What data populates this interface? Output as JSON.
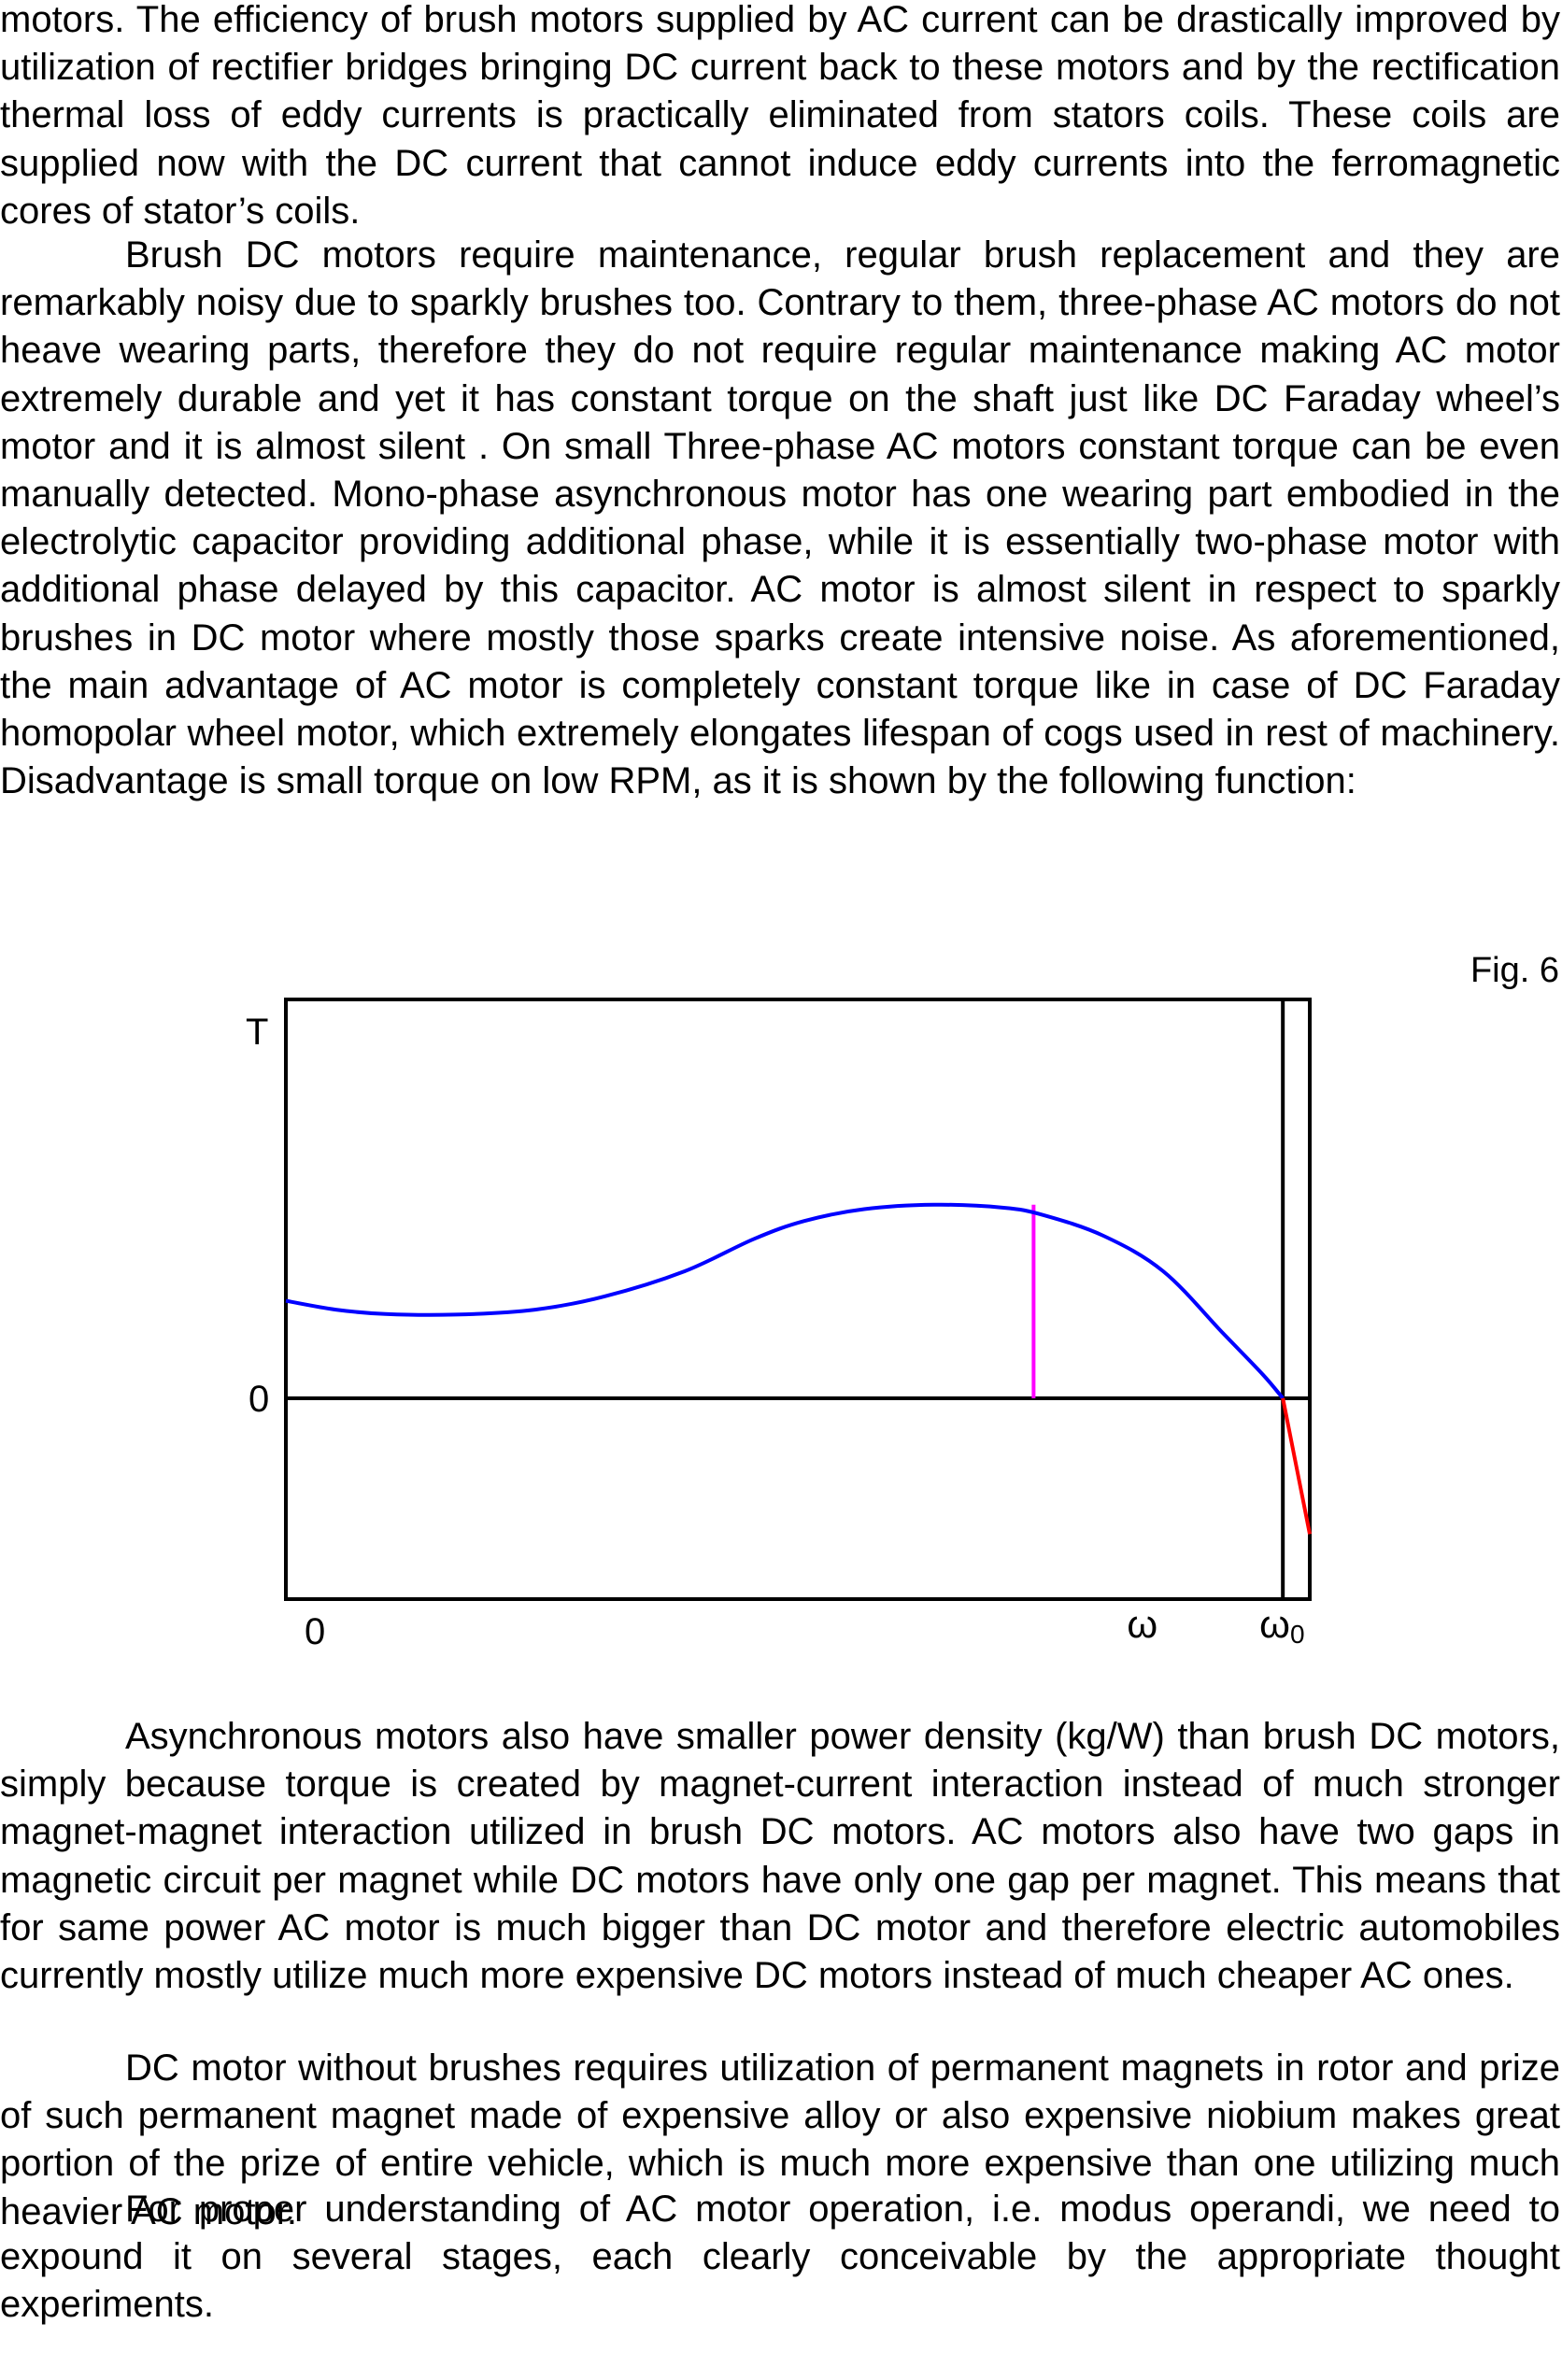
{
  "paragraphs": {
    "p1": "motors. The efficiency of brush motors supplied by AC current can be drastically improved by utilization of rectifier bridges bringing DC current back to these motors and by the rectification thermal loss of eddy currents is practically eliminated from stators coils. These coils are supplied now with the DC current that cannot induce eddy currents into the ferromagnetic cores of stator’s coils.",
    "p2": "Brush DC motors require maintenance, regular brush replacement and they are remarkably noisy due to sparkly brushes too. Contrary to them, three-phase AC motors do not heave wearing parts, therefore they do not require regular maintenance making AC motor extremely durable and yet it has constant torque on the shaft just like DC Faraday wheel’s motor and it is almost silent . On small Three-phase AC motors constant torque can be even manually detected. Mono-phase asynchronous motor has one wearing part embodied in the electrolytic capacitor providing additional phase, while it is essentially two-phase motor with additional phase delayed by this capacitor. AC motor is almost silent in respect to sparkly brushes in DC motor where mostly those sparks create intensive noise. As aforementioned, the main advantage of AC motor is completely constant torque like in case of DC Faraday homopolar wheel motor, which extremely elongates lifespan of cogs used in rest of machinery. Disadvantage is small torque on low RPM, as it is shown by the following function:",
    "p3": "Asynchronous motors also have smaller power density (kg/W) than brush DC motors, simply because torque is created by magnet-current interaction instead of much stronger magnet-magnet interaction utilized in brush DC motors. AC motors also have two gaps in magnetic circuit per magnet while DC motors have only one gap per magnet. This means that for same power AC motor is much bigger than DC motor and therefore electric automobiles currently mostly utilize much more expensive DC motors instead of much cheaper AC ones.",
    "p4": "DC motor without brushes requires utilization of permanent magnets in rotor and prize of such permanent magnet made of expensive alloy or also expensive niobium makes great portion of the prize of entire vehicle, which is much more expensive than one utilizing much heavier AC motor.",
    "p5": "For proper understanding of AC motor operation, i.e. modus operandi, we need to expound it on several stages, each clearly conceivable by the appropriate thought experiments."
  },
  "figure": {
    "caption": "Fig. 6"
  },
  "chart_data": {
    "type": "line",
    "title": "",
    "xlabel": "",
    "ylabel": "T",
    "y_zero_label": "0",
    "x_origin_label": "0",
    "x_marker_labels": {
      "omega": "ω",
      "omega0_main": "ω",
      "omega0_sub": "0"
    },
    "xlim": [
      0,
      1.027
    ],
    "ylim": [
      -0.68,
      1.35
    ],
    "grid": false,
    "legend": "none",
    "series": [
      {
        "color": "#0000ff",
        "x": [
          0,
          0.05,
          0.1,
          0.17,
          0.25,
          0.32,
          0.4,
          0.47,
          0.52,
          0.58,
          0.65,
          0.72,
          0.76,
          0.82,
          0.88,
          0.94,
          0.98,
          1.0
        ],
        "y": [
          0.33,
          0.3,
          0.285,
          0.283,
          0.3,
          0.345,
          0.43,
          0.54,
          0.6,
          0.64,
          0.655,
          0.645,
          0.62,
          0.55,
          0.43,
          0.22,
          0.08,
          0.0
        ]
      },
      {
        "color": "#ff0000",
        "x": [
          1.0,
          1.027
        ],
        "y": [
          0.0,
          -0.46
        ]
      }
    ],
    "markers": [
      {
        "type": "vertical-segment",
        "color": "#ff00ff",
        "x": 0.75,
        "y": [
          0,
          0.655
        ]
      },
      {
        "type": "vertical-line",
        "color": "#000000",
        "x": 1.0
      }
    ]
  }
}
